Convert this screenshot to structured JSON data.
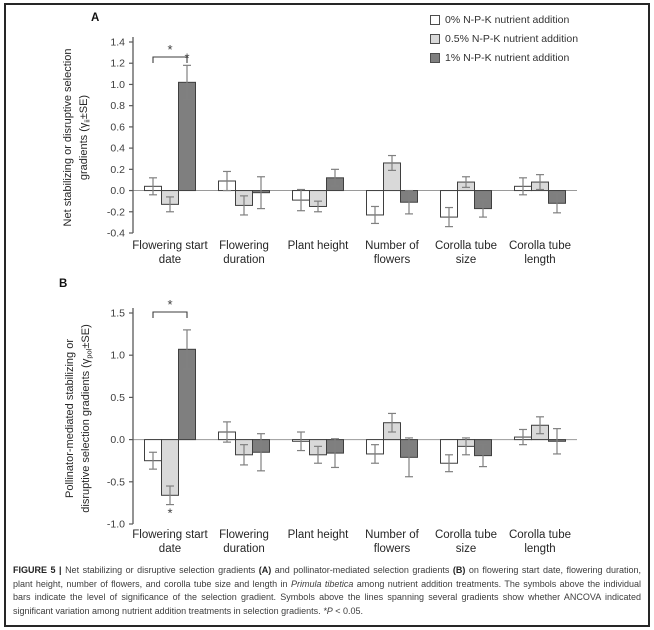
{
  "colors": {
    "bar_border": "#3f3f3f",
    "error_bar": "#808080",
    "axis": "#595959",
    "zero_line": "#9a9a9a",
    "tick_text": "#3d3d3d",
    "label_text": "#262626",
    "annotation": "#3d3d3d"
  },
  "chart_data": [
    {
      "panel": "A",
      "type": "bar",
      "ylabel": "Net stabilizing or disruptive selection gradients (γii±SE)",
      "ylabel_lines": {
        "line1": "Net stabilizing or disruptive selection",
        "line2_pre": "gradients (γ",
        "line2_sub": "ii",
        "line2_post": "±SE)"
      },
      "ylim": [
        -0.4,
        1.4
      ],
      "yticks": [
        1.4,
        1.2,
        1.0,
        0.8,
        0.6,
        0.4,
        0.2,
        0.0,
        -0.2,
        -0.4
      ],
      "categories": [
        "Flowering start date",
        "Flowering duration",
        "Plant height",
        "Number of flowers",
        "Corolla tube size",
        "Corolla tube length"
      ],
      "category_lines": [
        [
          "Flowering start",
          "date"
        ],
        [
          "Flowering",
          "duration"
        ],
        [
          "Plant height"
        ],
        [
          "Number of",
          "flowers"
        ],
        [
          "Corolla tube",
          "size"
        ],
        [
          "Corolla tube",
          "length"
        ]
      ],
      "series": [
        {
          "name": "0% N-P-K nutrient addition",
          "fill": "#ffffff",
          "values": [
            0.04,
            0.09,
            -0.09,
            -0.23,
            -0.25,
            0.04
          ],
          "se": [
            0.08,
            0.09,
            0.1,
            0.08,
            0.09,
            0.08
          ]
        },
        {
          "name": "0.5% N-P-K nutrient addition",
          "fill": "#d9d9d9",
          "values": [
            -0.13,
            -0.14,
            -0.15,
            0.26,
            0.08,
            0.08
          ],
          "se": [
            0.07,
            0.09,
            0.05,
            0.07,
            0.05,
            0.07
          ]
        },
        {
          "name": "1% N-P-K nutrient addition",
          "fill": "#7f7f7f",
          "values": [
            1.02,
            -0.02,
            0.12,
            -0.11,
            -0.17,
            -0.12
          ],
          "se": [
            0.16,
            0.15,
            0.08,
            0.11,
            0.08,
            0.09
          ]
        }
      ],
      "annotations": {
        "bracket": {
          "group_index": 0,
          "from_series": 0,
          "to_series": 2,
          "label": "*"
        },
        "bar_stars": [
          {
            "group_index": 0,
            "series_index": 2,
            "placement": "above",
            "label": "*"
          }
        ]
      }
    },
    {
      "panel": "B",
      "type": "bar",
      "ylabel": "Pollinator-mediated stabilizing or disruptive selection gradients (γpol±SE)",
      "ylabel_lines": {
        "line1": "Pollinator-mediated stabilizing or",
        "line2_pre": "disruptive selection gradients (γ",
        "line2_sub": "pol",
        "line2_post": "±SE)"
      },
      "ylim": [
        -1.0,
        1.5
      ],
      "yticks": [
        1.5,
        1.0,
        0.5,
        0.0,
        -0.5,
        -1.0
      ],
      "categories": [
        "Flowering start date",
        "Flowering duration",
        "Plant height",
        "Number of flowers",
        "Corolla tube size",
        "Corolla tube length"
      ],
      "category_lines": [
        [
          "Flowering start",
          "date"
        ],
        [
          "Flowering",
          "duration"
        ],
        [
          "Plant height"
        ],
        [
          "Number of",
          "flowers"
        ],
        [
          "Corolla tube",
          "size"
        ],
        [
          "Corolla tube",
          "length"
        ]
      ],
      "series": [
        {
          "name": "0% N-P-K nutrient addition",
          "fill": "#ffffff",
          "values": [
            -0.25,
            0.09,
            -0.02,
            -0.17,
            -0.28,
            0.03
          ],
          "se": [
            0.1,
            0.12,
            0.11,
            0.11,
            0.1,
            0.09
          ]
        },
        {
          "name": "0.5% N-P-K nutrient addition",
          "fill": "#d9d9d9",
          "values": [
            -0.66,
            -0.18,
            -0.18,
            0.2,
            -0.08,
            0.17
          ],
          "se": [
            0.11,
            0.12,
            0.1,
            0.11,
            0.1,
            0.1
          ]
        },
        {
          "name": "1% N-P-K nutrient addition",
          "fill": "#7f7f7f",
          "values": [
            1.07,
            -0.15,
            -0.16,
            -0.21,
            -0.19,
            -0.02
          ],
          "se": [
            0.23,
            0.22,
            0.17,
            0.23,
            0.13,
            0.15
          ]
        }
      ],
      "annotations": {
        "bracket": {
          "group_index": 0,
          "from_series": 0,
          "to_series": 2,
          "label": "*"
        },
        "bar_stars": [
          {
            "group_index": 0,
            "series_index": 1,
            "placement": "below",
            "label": "*"
          }
        ]
      }
    }
  ],
  "caption": {
    "segments": [
      {
        "text": "FIGURE 5 | ",
        "bold": true
      },
      {
        "text": "Net stabilizing or disruptive selection gradients "
      },
      {
        "text": "(A)",
        "bold": true
      },
      {
        "text": " and pollinator-mediated selection gradients "
      },
      {
        "text": "(B)",
        "bold": true
      },
      {
        "text": " on flowering start date, flowering duration, plant height, number of flowers, and corolla tube size and length in "
      },
      {
        "text": "Primula tibetica",
        "italic": true
      },
      {
        "text": " among nutrient addition treatments. The symbols above the individual bars indicate the level of significance of the selection gradient. Symbols above the lines spanning several gradients show whether ANCOVA indicated significant variation among nutrient addition treatments in selection gradients. "
      },
      {
        "text": "*P",
        "italic": true
      },
      {
        "text": " < 0.05."
      }
    ]
  }
}
